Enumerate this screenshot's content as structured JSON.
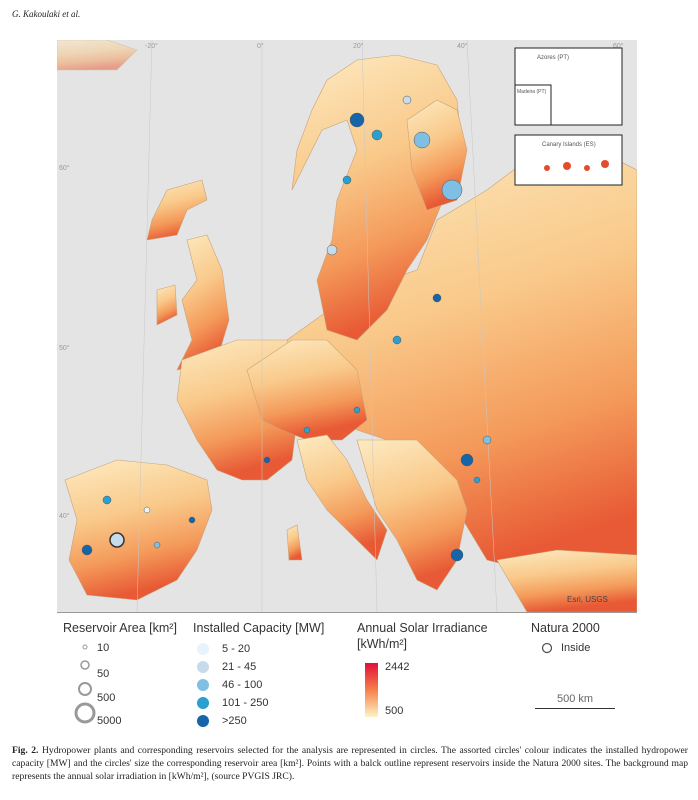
{
  "header": {
    "running_head": "G. Kakoulaki et al."
  },
  "map": {
    "graticule_top": [
      "-20°",
      "0°",
      "20°",
      "40°",
      "60°"
    ],
    "graticule_left": [
      "60°",
      "50°",
      "40°"
    ],
    "insets": [
      "Azores (PT)",
      "Madeira (PT)",
      "Canary Islands (ES)"
    ],
    "credit": "Esri, USGS"
  },
  "legend": {
    "reservoir_area": {
      "title": "Reservoir Area [km²]",
      "items": [
        "10",
        "50",
        "500",
        "5000"
      ]
    },
    "installed_capacity": {
      "title": "Installed Capacity [MW]",
      "items": [
        "5 - 20",
        "21 - 45",
        "46 - 100",
        "101 - 250",
        ">250"
      ]
    },
    "solar": {
      "title": "Annual Solar Irradiance",
      "unit": "[kWh/m²]",
      "max": "2442",
      "min": "500"
    },
    "natura": {
      "title": "Natura 2000",
      "item": "Inside"
    },
    "scale": "500 km"
  },
  "caption": {
    "label": "Fig. 2.",
    "text": "Hydropower plants and corresponding reservoirs selected for the analysis are represented in circles. The assorted circles' colour indicates the installed hydropower capacity [MW] and the circles' size the corresponding reservoir area [km²]. Points with a balck outline represent reservoirs inside the Natura 2000 sites. The background map represents the annual solar irradiation in [kWh/m²], (source PVGIS JRC)."
  }
}
